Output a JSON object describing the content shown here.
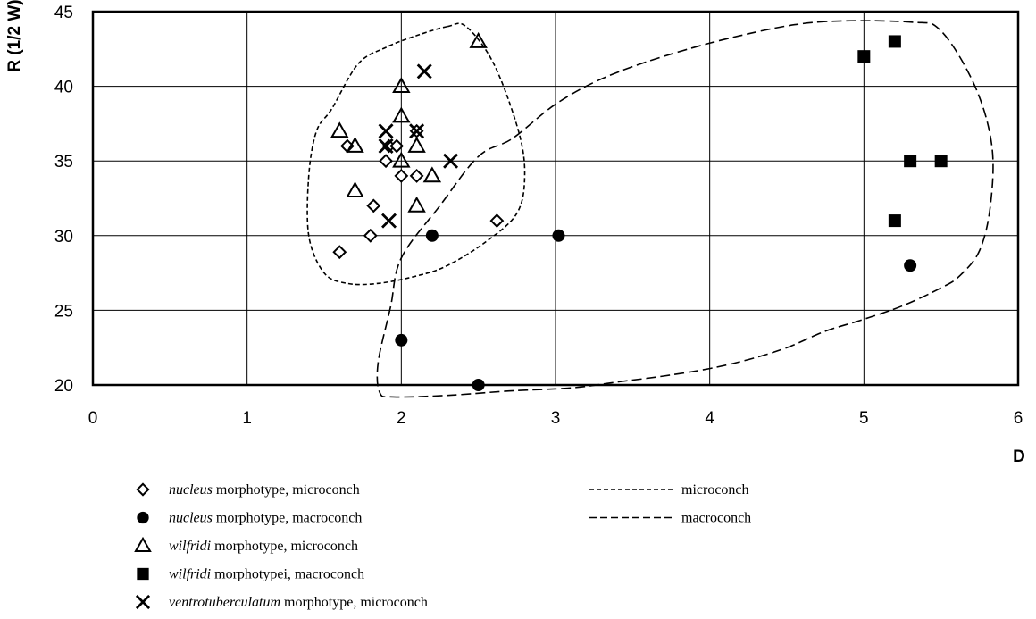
{
  "chart_data": {
    "type": "scatter",
    "xlabel": "D",
    "ylabel": "R (1/2 W)",
    "xlim": [
      0,
      6
    ],
    "ylim": [
      20,
      45
    ],
    "xticks": [
      "0",
      "1",
      "2",
      "3",
      "4",
      "5",
      "6"
    ],
    "yticks": [
      "20",
      "25",
      "30",
      "35",
      "40",
      "45"
    ],
    "grid": true,
    "series": [
      {
        "name_italic": "nucleus",
        "name_rest": " morphotype, microconch",
        "marker": "diamond-open",
        "points": [
          [
            1.6,
            28.9
          ],
          [
            1.65,
            36
          ],
          [
            1.8,
            30
          ],
          [
            1.82,
            32
          ],
          [
            1.9,
            35
          ],
          [
            1.92,
            36
          ],
          [
            1.97,
            36
          ],
          [
            2.0,
            34
          ],
          [
            2.1,
            34
          ],
          [
            2.1,
            37
          ],
          [
            2.62,
            31
          ]
        ]
      },
      {
        "name_italic": "nucleus",
        "name_rest": " morphotype, macroconch",
        "marker": "circle-filled",
        "points": [
          [
            2.0,
            23
          ],
          [
            2.2,
            30
          ],
          [
            2.5,
            20
          ],
          [
            3.02,
            30
          ],
          [
            5.3,
            28
          ]
        ]
      },
      {
        "name_italic": "wilfridi",
        "name_rest": " morphotype, microconch",
        "marker": "triangle-open",
        "points": [
          [
            1.6,
            37
          ],
          [
            1.7,
            36
          ],
          [
            1.7,
            33
          ],
          [
            2.0,
            40
          ],
          [
            2.0,
            38
          ],
          [
            2.0,
            35
          ],
          [
            2.1,
            36
          ],
          [
            2.1,
            32
          ],
          [
            2.2,
            34
          ],
          [
            2.5,
            43
          ]
        ]
      },
      {
        "name_italic": "wilfridi",
        "name_rest": " morphotypei, macroconch",
        "marker": "square-filled",
        "points": [
          [
            5.0,
            42
          ],
          [
            5.2,
            43
          ],
          [
            5.2,
            31
          ],
          [
            5.3,
            35
          ],
          [
            5.5,
            35
          ]
        ]
      },
      {
        "name_italic": "ventrotuberculatum",
        "name_rest": " morphotype, microconch",
        "marker": "x",
        "points": [
          [
            1.9,
            37
          ],
          [
            1.9,
            36
          ],
          [
            1.92,
            31
          ],
          [
            2.1,
            37
          ],
          [
            2.15,
            41
          ],
          [
            2.32,
            35
          ]
        ]
      }
    ],
    "envelopes": [
      {
        "name": "microconch",
        "dash": "short",
        "points": [
          [
            2.3,
            44
          ],
          [
            2.42,
            44
          ],
          [
            2.6,
            41.5
          ],
          [
            2.76,
            37
          ],
          [
            2.8,
            34
          ],
          [
            2.75,
            31.5
          ],
          [
            2.55,
            29.6
          ],
          [
            2.3,
            28
          ],
          [
            2.1,
            27.3
          ],
          [
            1.85,
            26.8
          ],
          [
            1.65,
            26.8
          ],
          [
            1.5,
            27.5
          ],
          [
            1.4,
            30
          ],
          [
            1.4,
            34
          ],
          [
            1.45,
            37
          ],
          [
            1.55,
            38.5
          ],
          [
            1.72,
            41.5
          ],
          [
            1.9,
            42.6
          ],
          [
            2.1,
            43.4
          ]
        ]
      },
      {
        "name": "macroconch",
        "dash": "long",
        "points": [
          [
            4.7,
            44.3
          ],
          [
            5.3,
            44.3
          ],
          [
            5.5,
            43.7
          ],
          [
            5.72,
            40
          ],
          [
            5.83,
            36
          ],
          [
            5.82,
            32
          ],
          [
            5.75,
            29
          ],
          [
            5.62,
            27.3
          ],
          [
            5.5,
            26.5
          ],
          [
            5.25,
            25.3
          ],
          [
            5.0,
            24.4
          ],
          [
            4.75,
            23.6
          ],
          [
            4.5,
            22.5
          ],
          [
            4.25,
            21.7
          ],
          [
            4.0,
            21.1
          ],
          [
            3.7,
            20.6
          ],
          [
            3.4,
            20.2
          ],
          [
            3.1,
            19.8
          ],
          [
            2.7,
            19.6
          ],
          [
            2.3,
            19.3
          ],
          [
            1.95,
            19.2
          ],
          [
            1.86,
            19.5
          ],
          [
            1.85,
            21.5
          ],
          [
            1.93,
            25.2
          ],
          [
            2.0,
            28.5
          ],
          [
            2.25,
            32
          ],
          [
            2.5,
            35.3
          ],
          [
            2.72,
            36.5
          ],
          [
            3.0,
            38.8
          ],
          [
            3.3,
            40.5
          ],
          [
            3.7,
            42
          ],
          [
            4.2,
            43.4
          ]
        ]
      }
    ]
  }
}
